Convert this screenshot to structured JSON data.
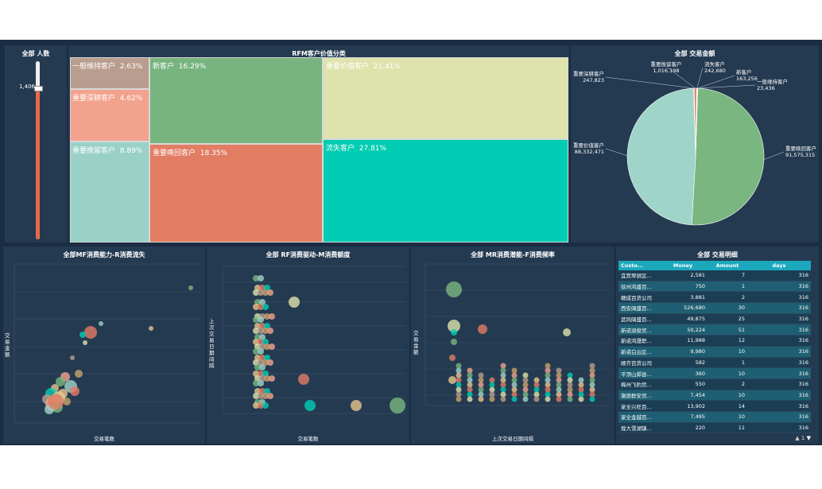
{
  "slider_panel": {
    "title": "全部 人数",
    "value_label": "1,406"
  },
  "treemap": {
    "title": "RFM客户价值分类",
    "cells": [
      {
        "label": "一般维持客户",
        "pct": "2.63%",
        "color": "#b99d8e"
      },
      {
        "label": "重要深耕客户",
        "pct": "4.62%",
        "color": "#f3a28e"
      },
      {
        "label": "重要挽留客户",
        "pct": "8.89%",
        "color": "#99d1c6"
      },
      {
        "label": "新客户",
        "pct": "16.29%",
        "color": "#78b47f"
      },
      {
        "label": "重要唤回客户",
        "pct": "18.35%",
        "color": "#e27d64"
      },
      {
        "label": "重要价值客户",
        "pct": "21.41%",
        "color": "#dee3ac"
      },
      {
        "label": "流失客户",
        "pct": "27.81%",
        "color": "#00cdb3"
      }
    ]
  },
  "pie": {
    "title": "全部 交易金额",
    "chart_data": {
      "type": "pie",
      "slices": [
        {
          "name": "重要唤回客户",
          "value": 91575315,
          "label": "91,575,315",
          "color": "#79b680"
        },
        {
          "name": "重要价值客户",
          "value": 88332471,
          "label": "88,332,471",
          "color": "#9fd4c8"
        },
        {
          "name": "重要深耕客户",
          "value": 247823,
          "label": "247,823",
          "color": "#f3a28e"
        },
        {
          "name": "重要挽留客户",
          "value": 1016198,
          "label": "1,016,198",
          "color": "#e27d64"
        },
        {
          "name": "流失客户",
          "value": 242680,
          "label": "242,680",
          "color": "#00cdb3"
        },
        {
          "name": "新客户",
          "value": 163256,
          "label": "163,256",
          "color": "#dee3ac"
        },
        {
          "name": "一般维持客户",
          "value": 23436,
          "label": "23,436",
          "color": "#b99d8e"
        }
      ]
    }
  },
  "scatter1": {
    "title": "全部MF消费能力-R消费流失",
    "xlabel": "交易笔数",
    "ylabel": "交易金额"
  },
  "scatter2": {
    "title": "全部 RF消费驱动-M消费额度",
    "xlabel": "交易笔数",
    "ylabel": "上次交易日期间隔"
  },
  "scatter3": {
    "title": "全部 MR消费潜能-F消费频率",
    "xlabel": "上次交易日期间隔",
    "ylabel": "交易金额"
  },
  "table": {
    "title": "全部 交易明细",
    "headers": [
      "Custo...",
      "Money",
      "Amount",
      "days"
    ],
    "rows": [
      [
        "宜宾翠屏区...",
        "2,581",
        "7",
        "316"
      ],
      [
        "徐州鸿盛百...",
        "750",
        "1",
        "316"
      ],
      [
        "赣成百货公司",
        "3,881",
        "2",
        "316"
      ],
      [
        "西安闽盛百...",
        "526,680",
        "30",
        "316"
      ],
      [
        "武冈闽盛百...",
        "49,875",
        "25",
        "316"
      ],
      [
        "新诺润俊贸...",
        "50,224",
        "51",
        "316"
      ],
      [
        "新诺鸿晟职...",
        "11,988",
        "12",
        "316"
      ],
      [
        "新诺白云区...",
        "9,980",
        "10",
        "316"
      ],
      [
        "顺齐百货公司",
        "582",
        "1",
        "316"
      ],
      [
        "平顶山郏县...",
        "360",
        "10",
        "316"
      ],
      [
        "梅州飞豹贸...",
        "550",
        "2",
        "316"
      ],
      [
        "施德群安贸...",
        "7,454",
        "10",
        "316"
      ],
      [
        "家全兴旺百...",
        "13,902",
        "14",
        "316"
      ],
      [
        "家全金越百...",
        "7,495",
        "10",
        "316"
      ],
      [
        "煌大雪湖镇...",
        "220",
        "11",
        "316"
      ]
    ],
    "page": "1"
  },
  "colors": {
    "bg": "#1a2d42",
    "panel": "#243a51",
    "accent": "#1ba8bd",
    "slider": "#e8684a"
  }
}
